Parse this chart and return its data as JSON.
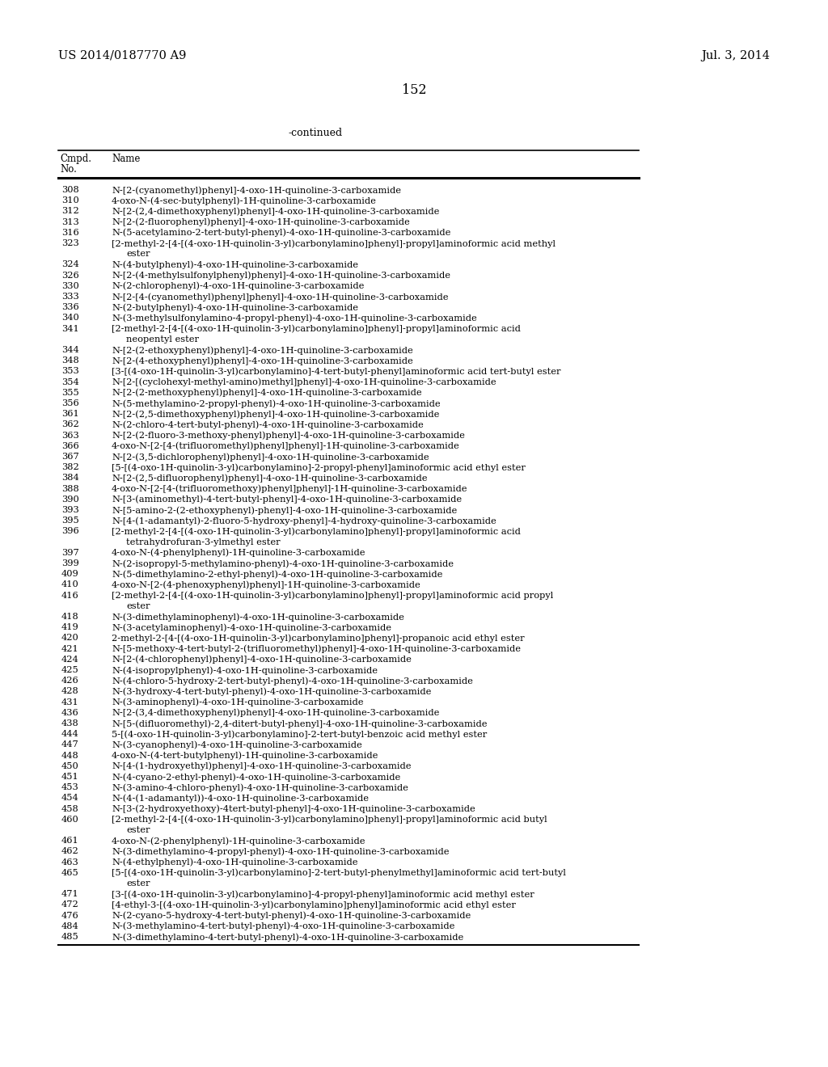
{
  "header_left": "US 2014/0187770 A9",
  "header_right": "Jul. 3, 2014",
  "page_number": "152",
  "continued_label": "-continued",
  "background_color": "#ffffff",
  "text_color": "#000000",
  "entries": [
    [
      "308",
      "N-[2-(cyanomethyl)phenyl]-4-oxo-1H-quinoline-3-carboxamide",
      false
    ],
    [
      "310",
      "4-oxo-N-(4-sec-butylphenyl)-1H-quinoline-3-carboxamide",
      false
    ],
    [
      "312",
      "N-[2-(2,4-dimethoxyphenyl)phenyl]-4-oxo-1H-quinoline-3-carboxamide",
      false
    ],
    [
      "313",
      "N-[2-(2-fluorophenyl)phenyl]-4-oxo-1H-quinoline-3-carboxamide",
      false
    ],
    [
      "316",
      "N-(5-acetylamino-2-tert-butyl-phenyl)-4-oxo-1H-quinoline-3-carboxamide",
      false
    ],
    [
      "323",
      "[2-methyl-2-[4-[(4-oxo-1H-quinolin-3-yl)carbonylamino]phenyl]-propyl]aminoformic acid methyl",
      true,
      "ester"
    ],
    [
      "324",
      "N-(4-butylphenyl)-4-oxo-1H-quinoline-3-carboxamide",
      false
    ],
    [
      "326",
      "N-[2-(4-methylsulfonylphenyl)phenyl]-4-oxo-1H-quinoline-3-carboxamide",
      false
    ],
    [
      "330",
      "N-(2-chlorophenyl)-4-oxo-1H-quinoline-3-carboxamide",
      false
    ],
    [
      "333",
      "N-[2-[4-(cyanomethyl)phenyl]phenyl]-4-oxo-1H-quinoline-3-carboxamide",
      false
    ],
    [
      "336",
      "N-(2-butylphenyl)-4-oxo-1H-quinoline-3-carboxamide",
      false
    ],
    [
      "340",
      "N-(3-methylsulfonylamino-4-propyl-phenyl)-4-oxo-1H-quinoline-3-carboxamide",
      false
    ],
    [
      "341",
      "[2-methyl-2-[4-[(4-oxo-1H-quinolin-3-yl)carbonylamino]phenyl]-propyl]aminoformic acid",
      true,
      "neopentyl ester"
    ],
    [
      "344",
      "N-[2-(2-ethoxyphenyl)phenyl]-4-oxo-1H-quinoline-3-carboxamide",
      false
    ],
    [
      "348",
      "N-[2-(4-ethoxyphenyl)phenyl]-4-oxo-1H-quinoline-3-carboxamide",
      false
    ],
    [
      "353",
      "[3-[(4-oxo-1H-quinolin-3-yl)carbonylamino]-4-tert-butyl-phenyl]aminoformic acid tert-butyl ester",
      false
    ],
    [
      "354",
      "N-[2-[(cyclohexyl-methyl-amino)methyl]phenyl]-4-oxo-1H-quinoline-3-carboxamide",
      false
    ],
    [
      "355",
      "N-[2-(2-methoxyphenyl)phenyl]-4-oxo-1H-quinoline-3-carboxamide",
      false
    ],
    [
      "356",
      "N-(5-methylamino-2-propyl-phenyl)-4-oxo-1H-quinoline-3-carboxamide",
      false
    ],
    [
      "361",
      "N-[2-(2,5-dimethoxyphenyl)phenyl]-4-oxo-1H-quinoline-3-carboxamide",
      false
    ],
    [
      "362",
      "N-(2-chloro-4-tert-butyl-phenyl)-4-oxo-1H-quinoline-3-carboxamide",
      false
    ],
    [
      "363",
      "N-[2-(2-fluoro-3-methoxy-phenyl)phenyl]-4-oxo-1H-quinoline-3-carboxamide",
      false
    ],
    [
      "366",
      "4-oxo-N-[2-[4-(trifluoromethyl)phenyl]phenyl]-1H-quinoline-3-carboxamide",
      false
    ],
    [
      "367",
      "N-[2-(3,5-dichlorophenyl)phenyl]-4-oxo-1H-quinoline-3-carboxamide",
      false
    ],
    [
      "382",
      "[5-[(4-oxo-1H-quinolin-3-yl)carbonylamino]-2-propyl-phenyl]aminoformic acid ethyl ester",
      false
    ],
    [
      "384",
      "N-[2-(2,5-difluorophenyl)phenyl]-4-oxo-1H-quinoline-3-carboxamide",
      false
    ],
    [
      "388",
      "4-oxo-N-[2-[4-(trifluoromethoxy)phenyl]phenyl]-1H-quinoline-3-carboxamide",
      false
    ],
    [
      "390",
      "N-[3-(aminomethyl)-4-tert-butyl-phenyl]-4-oxo-1H-quinoline-3-carboxamide",
      false
    ],
    [
      "393",
      "N-[5-amino-2-(2-ethoxyphenyl)-phenyl]-4-oxo-1H-quinoline-3-carboxamide",
      false
    ],
    [
      "395",
      "N-[4-(1-adamantyl)-2-fluoro-5-hydroxy-phenyl]-4-hydroxy-quinoline-3-carboxamide",
      false
    ],
    [
      "396",
      "[2-methyl-2-[4-[(4-oxo-1H-quinolin-3-yl)carbonylamino]phenyl]-propyl]aminoformic acid",
      true,
      "tetrahydrofuran-3-ylmethyl ester"
    ],
    [
      "397",
      "4-oxo-N-(4-phenylphenyl)-1H-quinoline-3-carboxamide",
      false
    ],
    [
      "399",
      "N-(2-isopropyl-5-methylamino-phenyl)-4-oxo-1H-quinoline-3-carboxamide",
      false
    ],
    [
      "409",
      "N-(5-dimethylamino-2-ethyl-phenyl)-4-oxo-1H-quinoline-3-carboxamide",
      false
    ],
    [
      "410",
      "4-oxo-N-[2-(4-phenoxyphenyl)phenyl]-1H-quinoline-3-carboxamide",
      false
    ],
    [
      "416",
      "[2-methyl-2-[4-[(4-oxo-1H-quinolin-3-yl)carbonylamino]phenyl]-propyl]aminoformic acid propyl",
      true,
      "ester"
    ],
    [
      "418",
      "N-(3-dimethylaminophenyl)-4-oxo-1H-quinoline-3-carboxamide",
      false
    ],
    [
      "419",
      "N-(3-acetylaminophenyl)-4-oxo-1H-quinoline-3-carboxamide",
      false
    ],
    [
      "420",
      "2-methyl-2-[4-[(4-oxo-1H-quinolin-3-yl)carbonylamino]phenyl]-propanoic acid ethyl ester",
      false
    ],
    [
      "421",
      "N-[5-methoxy-4-tert-butyl-2-(trifluoromethyl)phenyl]-4-oxo-1H-quinoline-3-carboxamide",
      false
    ],
    [
      "424",
      "N-[2-(4-chlorophenyl)phenyl]-4-oxo-1H-quinoline-3-carboxamide",
      false
    ],
    [
      "425",
      "N-(4-isopropylphenyl)-4-oxo-1H-quinoline-3-carboxamide",
      false
    ],
    [
      "426",
      "N-(4-chloro-5-hydroxy-2-tert-butyl-phenyl)-4-oxo-1H-quinoline-3-carboxamide",
      false
    ],
    [
      "428",
      "N-(3-hydroxy-4-tert-butyl-phenyl)-4-oxo-1H-quinoline-3-carboxamide",
      false
    ],
    [
      "431",
      "N-(3-aminophenyl)-4-oxo-1H-quinoline-3-carboxamide",
      false
    ],
    [
      "436",
      "N-[2-(3,4-dimethoxyphenyl)phenyl]-4-oxo-1H-quinoline-3-carboxamide",
      false
    ],
    [
      "438",
      "N-[5-(difluoromethyl)-2,4-ditert-butyl-phenyl]-4-oxo-1H-quinoline-3-carboxamide",
      false
    ],
    [
      "444",
      "5-[(4-oxo-1H-quinolin-3-yl)carbonylamino]-2-tert-butyl-benzoic acid methyl ester",
      false
    ],
    [
      "447",
      "N-(3-cyanophenyl)-4-oxo-1H-quinoline-3-carboxamide",
      false
    ],
    [
      "448",
      "4-oxo-N-(4-tert-butylphenyl)-1H-quinoline-3-carboxamide",
      false
    ],
    [
      "450",
      "N-[4-(1-hydroxyethyl)phenyl]-4-oxo-1H-quinoline-3-carboxamide",
      false
    ],
    [
      "451",
      "N-(4-cyano-2-ethyl-phenyl)-4-oxo-1H-quinoline-3-carboxamide",
      false
    ],
    [
      "453",
      "N-(3-amino-4-chloro-phenyl)-4-oxo-1H-quinoline-3-carboxamide",
      false
    ],
    [
      "454",
      "N-(4-(1-adamantyl))-4-oxo-1H-quinoline-3-carboxamide",
      false
    ],
    [
      "458",
      "N-[3-(2-hydroxyethoxy)-4tert-butyl-phenyl]-4-oxo-1H-quinoline-3-carboxamide",
      false
    ],
    [
      "460",
      "[2-methyl-2-[4-[(4-oxo-1H-quinolin-3-yl)carbonylamino]phenyl]-propyl]aminoformic acid butyl",
      true,
      "ester"
    ],
    [
      "461",
      "4-oxo-N-(2-phenylphenyl)-1H-quinoline-3-carboxamide",
      false
    ],
    [
      "462",
      "N-(3-dimethylamino-4-propyl-phenyl)-4-oxo-1H-quinoline-3-carboxamide",
      false
    ],
    [
      "463",
      "N-(4-ethylphenyl)-4-oxo-1H-quinoline-3-carboxamide",
      false
    ],
    [
      "465",
      "[5-[(4-oxo-1H-quinolin-3-yl)carbonylamino]-2-tert-butyl-phenylmethyl]aminoformic acid tert-butyl",
      true,
      "ester"
    ],
    [
      "471",
      "[3-[(4-oxo-1H-quinolin-3-yl)carbonylamino]-4-propyl-phenyl]aminoformic acid methyl ester",
      false
    ],
    [
      "472",
      "[4-ethyl-3-[(4-oxo-1H-quinolin-3-yl)carbonylamino]phenyl]aminoformic acid ethyl ester",
      false
    ],
    [
      "476",
      "N-(2-cyano-5-hydroxy-4-tert-butyl-phenyl)-4-oxo-1H-quinoline-3-carboxamide",
      false
    ],
    [
      "484",
      "N-(3-methylamino-4-tert-butyl-phenyl)-4-oxo-1H-quinoline-3-carboxamide",
      false
    ],
    [
      "485",
      "N-(3-dimethylamino-4-tert-butyl-phenyl)-4-oxo-1H-quinoline-3-carboxamide",
      false
    ]
  ]
}
